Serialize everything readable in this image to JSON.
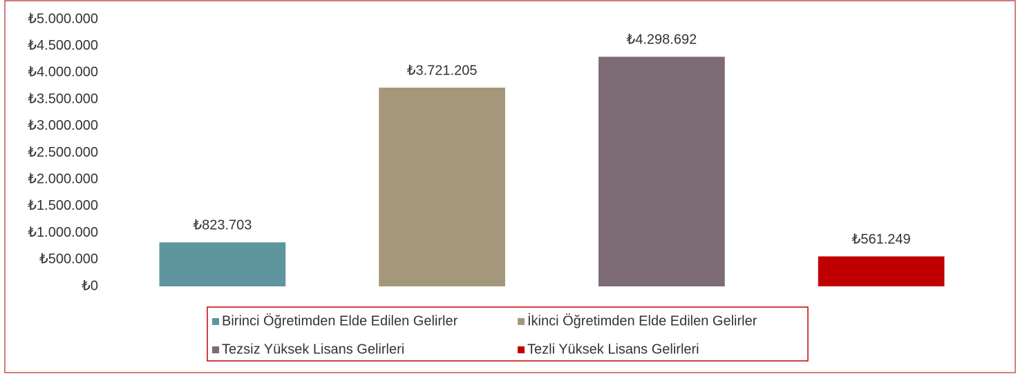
{
  "chart_data": {
    "type": "bar",
    "categories": [
      null
    ],
    "series": [
      {
        "name": "Birinci Öğretimden Elde Edilen Gelirler",
        "color": "#5f959e",
        "values": [
          823703
        ],
        "value_labels": [
          "₺823.703"
        ]
      },
      {
        "name": "İkinci Öğretimden Elde Edilen Gelirler",
        "color": "#a5977b",
        "values": [
          3721205
        ],
        "value_labels": [
          "₺3.721.205"
        ]
      },
      {
        "name": "Tezsiz Yüksek Lisans Gelirleri",
        "color": "#7d6b75",
        "values": [
          4298692
        ],
        "value_labels": [
          "₺4.298.692"
        ]
      },
      {
        "name": "Tezli Yüksek Lisans Gelirleri",
        "color": "#c00000",
        "values": [
          561249
        ],
        "value_labels": [
          "₺561.249"
        ]
      }
    ],
    "ylim": [
      0,
      5000000
    ],
    "yticks": [
      {
        "value": 0,
        "label": "₺0"
      },
      {
        "value": 500000,
        "label": "₺500.000"
      },
      {
        "value": 1000000,
        "label": "₺1.000.000"
      },
      {
        "value": 1500000,
        "label": "₺1.500.000"
      },
      {
        "value": 2000000,
        "label": "₺2.000.000"
      },
      {
        "value": 2500000,
        "label": "₺2.500.000"
      },
      {
        "value": 3000000,
        "label": "₺3.000.000"
      },
      {
        "value": 3500000,
        "label": "₺3.500.000"
      },
      {
        "value": 4000000,
        "label": "₺4.000.000"
      },
      {
        "value": 4500000,
        "label": "₺4.500.000"
      },
      {
        "value": 5000000,
        "label": "₺5.000.000"
      }
    ],
    "grid": false
  }
}
